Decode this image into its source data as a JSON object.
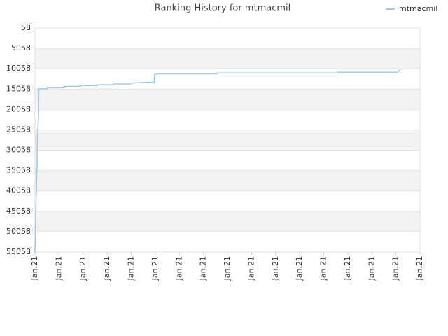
{
  "chart_data": {
    "type": "line",
    "title": "Ranking History for mtmacmil",
    "ylim": [
      55058,
      58
    ],
    "yticks": [
      58,
      5058,
      10058,
      15058,
      20058,
      25058,
      30058,
      35058,
      40058,
      45058,
      50058,
      55058
    ],
    "xlim": [
      0,
      16
    ],
    "xticks": [
      {
        "value": 0,
        "label": "Jan.21"
      },
      {
        "value": 1,
        "label": "Jan.21"
      },
      {
        "value": 2,
        "label": "Jan.21"
      },
      {
        "value": 3,
        "label": "Jan.21"
      },
      {
        "value": 4,
        "label": "Jan.21"
      },
      {
        "value": 5,
        "label": "Jan.21"
      },
      {
        "value": 6,
        "label": "Jan.21"
      },
      {
        "value": 7,
        "label": "Jan.21"
      },
      {
        "value": 8,
        "label": "Jan.21"
      },
      {
        "value": 9,
        "label": "Jan.21"
      },
      {
        "value": 10,
        "label": "Jan.21"
      },
      {
        "value": 11,
        "label": "Jan.21"
      },
      {
        "value": 12,
        "label": "Jan.21"
      },
      {
        "value": 13,
        "label": "Jan.21"
      },
      {
        "value": 14,
        "label": "Jan.21"
      },
      {
        "value": 15,
        "label": "Jan.21"
      },
      {
        "value": 16,
        "label": "Jan.21"
      }
    ],
    "grid": true,
    "legend": "top-right",
    "x": [
      0,
      0.01,
      0.03,
      0.06,
      0.09,
      0.1,
      0.15,
      0.16,
      0.52,
      0.52,
      1.22,
      1.22,
      1.89,
      1.89,
      2.59,
      2.59,
      3.29,
      3.29,
      3.99,
      3.99,
      4.65,
      4.95,
      4.97,
      5.09,
      7.56,
      7.56,
      12.6,
      12.6,
      15.07,
      15.19
    ],
    "series": [
      {
        "name": "mtmacmil",
        "color": "#9ec9ef",
        "values": [
          55058,
          51700,
          45500,
          39500,
          33000,
          27000,
          21000,
          15000,
          15000,
          14700,
          14700,
          14400,
          14400,
          14200,
          14200,
          14000,
          14000,
          13800,
          13800,
          13600,
          13400,
          13400,
          11500,
          11300,
          11300,
          11100,
          11100,
          10900,
          10900,
          10200
        ]
      }
    ]
  }
}
